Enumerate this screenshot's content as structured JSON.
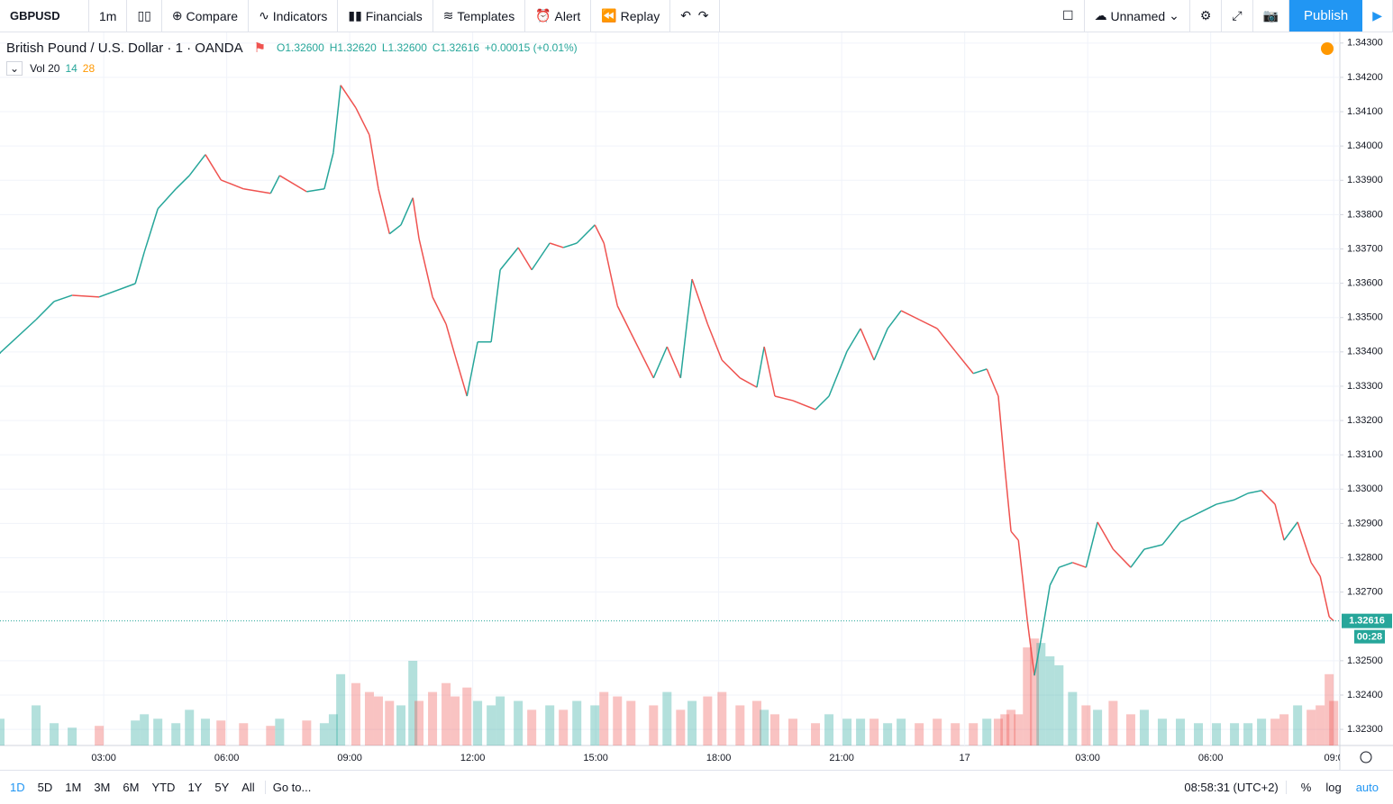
{
  "toolbar": {
    "symbol": "GBPUSD",
    "interval": "1m",
    "items": [
      "Compare",
      "Indicators",
      "Financials",
      "Templates",
      "Alert",
      "Replay"
    ],
    "layout": "Unnamed",
    "publish": "Publish"
  },
  "legend": {
    "title": "British Pound / U.S. Dollar · 1 · OANDA",
    "open": "O1.32600",
    "high": "H1.32620",
    "low": "L1.32600",
    "close": "C1.32616",
    "change": "+0.00015 (+0.01%)",
    "volume_label": "Vol 20",
    "volume_value": "14",
    "volume_ma": "28"
  },
  "bottom_bar": {
    "ranges": [
      "1D",
      "5D",
      "1M",
      "3M",
      "6M",
      "YTD",
      "1Y",
      "5Y",
      "All"
    ],
    "goto": "Go to...",
    "clock": "08:58:31 (UTC+2)",
    "options": [
      "%",
      "log",
      "auto"
    ]
  },
  "chart_data": {
    "type": "line",
    "up_color": "#26a69a",
    "down_color": "#ef5350",
    "grid": true,
    "x": [
      0.47,
      1.35,
      1.79,
      2.23,
      2.89,
      3.77,
      3.99,
      4.32,
      4.76,
      5.09,
      5.48,
      5.86,
      6.41,
      7.07,
      7.29,
      7.95,
      8.38,
      8.6,
      8.78,
      9.15,
      9.48,
      9.7,
      9.97,
      10.25,
      10.54,
      10.69,
      11.02,
      11.35,
      11.57,
      11.86,
      12.12,
      12.45,
      12.67,
      13.11,
      13.44,
      13.88,
      14.21,
      14.54,
      14.98,
      15.2,
      15.53,
      15.86,
      16.41,
      16.74,
      17.07,
      17.35,
      17.73,
      18.08,
      18.52,
      18.93,
      19.11,
      19.37,
      19.81,
      20.36,
      20.69,
      21.13,
      21.46,
      21.79,
      22.12,
      22.45,
      22.89,
      23.33,
      23.77,
      24.21,
      24.54,
      24.82,
      24.98,
      25.13,
      25.31,
      25.53,
      25.7,
      25.86,
      26.08,
      26.3,
      26.63,
      26.96,
      27.24,
      27.62,
      28.05,
      28.38,
      28.82,
      29.26,
      29.7,
      30.14,
      30.58,
      30.91,
      31.24,
      31.57,
      31.79,
      32.12,
      32.45,
      32.67,
      32.89,
      33.0
    ],
    "values": [
      1.33397,
      1.33494,
      1.33547,
      1.33565,
      1.3356,
      1.33599,
      1.33691,
      1.33817,
      1.33875,
      1.33914,
      1.33975,
      1.33901,
      1.33875,
      1.33862,
      1.33914,
      1.33867,
      1.33875,
      1.3398,
      1.34177,
      1.34111,
      1.34032,
      1.33875,
      1.33744,
      1.3377,
      1.33849,
      1.3373,
      1.3356,
      1.33481,
      1.33389,
      1.33271,
      1.33429,
      1.33429,
      1.33639,
      1.33704,
      1.33639,
      1.33717,
      1.33704,
      1.33717,
      1.3377,
      1.33717,
      1.33534,
      1.33455,
      1.33324,
      1.33415,
      1.33324,
      1.33612,
      1.33481,
      1.33376,
      1.33324,
      1.33297,
      1.33415,
      1.33271,
      1.33258,
      1.33232,
      1.33271,
      1.33402,
      1.33468,
      1.33376,
      1.33468,
      1.3352,
      1.33494,
      1.33468,
      1.33402,
      1.33337,
      1.3335,
      1.33271,
      1.33061,
      1.32877,
      1.32851,
      1.32615,
      1.32457,
      1.32562,
      1.3272,
      1.32772,
      1.32786,
      1.32772,
      1.32904,
      1.32825,
      1.32772,
      1.32825,
      1.32838,
      1.32904,
      1.3293,
      1.32956,
      1.32969,
      1.32988,
      1.32996,
      1.32956,
      1.32851,
      1.32904,
      1.32786,
      1.32746,
      1.32628,
      1.32616
    ],
    "volume": [
      30,
      45,
      25,
      20,
      22,
      28,
      35,
      30,
      25,
      40,
      30,
      28,
      25,
      22,
      30,
      28,
      25,
      35,
      80,
      70,
      60,
      55,
      50,
      45,
      95,
      50,
      60,
      70,
      55,
      65,
      50,
      45,
      55,
      50,
      40,
      45,
      40,
      50,
      45,
      60,
      55,
      50,
      45,
      60,
      40,
      50,
      55,
      60,
      45,
      50,
      40,
      35,
      30,
      25,
      35,
      30,
      30,
      30,
      25,
      30,
      25,
      30,
      25,
      25,
      30,
      30,
      35,
      40,
      35,
      110,
      120,
      115,
      100,
      90,
      60,
      45,
      40,
      50,
      35,
      40,
      30,
      30,
      25,
      25,
      25,
      25,
      30,
      30,
      35,
      45,
      40,
      45,
      80,
      50
    ],
    "volume_lim": [
      0,
      800
    ],
    "xlim": [
      0.47,
      33.15
    ],
    "ylim": [
      1.32253,
      1.34331
    ],
    "xticks": [
      {
        "value": 3,
        "label": "03:00"
      },
      {
        "value": 6,
        "label": "06:00"
      },
      {
        "value": 9,
        "label": "09:00"
      },
      {
        "value": 12,
        "label": "12:00"
      },
      {
        "value": 15,
        "label": "15:00"
      },
      {
        "value": 18,
        "label": "18:00"
      },
      {
        "value": 21,
        "label": "21:00"
      },
      {
        "value": 24,
        "label": "17"
      },
      {
        "value": 27,
        "label": "03:00"
      },
      {
        "value": 30,
        "label": "06:00"
      },
      {
        "value": 33,
        "label": "09:0"
      }
    ],
    "yticks": [
      {
        "value": 1.323,
        "label": "1.32300"
      },
      {
        "value": 1.324,
        "label": "1.32400"
      },
      {
        "value": 1.325,
        "label": "1.32500"
      },
      {
        "value": 1.327,
        "label": "1.32700"
      },
      {
        "value": 1.328,
        "label": "1.32800"
      },
      {
        "value": 1.329,
        "label": "1.32900"
      },
      {
        "value": 1.33,
        "label": "1.33000"
      },
      {
        "value": 1.331,
        "label": "1.33100"
      },
      {
        "value": 1.332,
        "label": "1.33200"
      },
      {
        "value": 1.333,
        "label": "1.33300"
      },
      {
        "value": 1.334,
        "label": "1.33400"
      },
      {
        "value": 1.335,
        "label": "1.33500"
      },
      {
        "value": 1.336,
        "label": "1.33600"
      },
      {
        "value": 1.337,
        "label": "1.33700"
      },
      {
        "value": 1.338,
        "label": "1.33800"
      },
      {
        "value": 1.339,
        "label": "1.33900"
      },
      {
        "value": 1.34,
        "label": "1.34000"
      },
      {
        "value": 1.341,
        "label": "1.34100"
      },
      {
        "value": 1.342,
        "label": "1.34200"
      },
      {
        "value": 1.343,
        "label": "1.34300"
      }
    ],
    "last_price": {
      "value": 1.32616,
      "label": "1.32616"
    },
    "countdown": "00:28"
  }
}
